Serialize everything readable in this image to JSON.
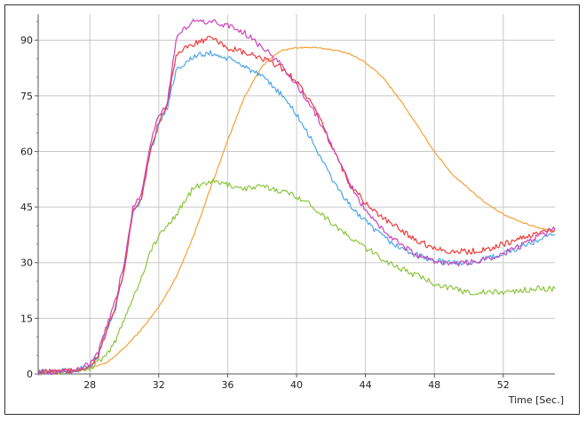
{
  "chart_data": {
    "type": "line",
    "title": "",
    "xlabel": "Time [Sec.]",
    "ylabel": "",
    "xlim": [
      25,
      55
    ],
    "ylim": [
      0,
      97
    ],
    "x_ticks": [
      28,
      32,
      36,
      40,
      44,
      48,
      52
    ],
    "y_ticks": [
      0,
      15,
      30,
      45,
      60,
      75,
      90
    ],
    "grid": true,
    "legend": "none",
    "series": [
      {
        "color": "#f7a035",
        "x": [
          25,
          27,
          28,
          29,
          30,
          31,
          32,
          33,
          34,
          35,
          36,
          37,
          38,
          39,
          40,
          41,
          42,
          43,
          44,
          45,
          46,
          47,
          48,
          49,
          50,
          51,
          52,
          53,
          54,
          55
        ],
        "y": [
          0.5,
          0.8,
          1.5,
          3,
          7,
          12,
          18,
          26,
          37,
          50,
          63,
          75,
          83,
          87,
          88,
          88,
          87.5,
          86.5,
          84,
          80,
          74,
          67,
          60,
          54,
          50,
          46,
          43,
          41,
          39.5,
          38.5
        ]
      },
      {
        "color": "#8cc63f",
        "x": [
          25,
          27,
          28,
          29,
          29.5,
          30,
          31,
          31.5,
          32,
          33,
          34,
          35,
          36,
          37,
          38,
          39,
          40,
          41,
          42,
          43,
          44,
          45,
          46,
          47,
          48,
          49,
          50,
          51,
          52,
          53,
          54,
          55
        ],
        "y": [
          0.5,
          0.8,
          1.5,
          5,
          9,
          15,
          26,
          33,
          37,
          43,
          50,
          52,
          51,
          50,
          50.5,
          49.5,
          48,
          45,
          41,
          37,
          34,
          31,
          28.5,
          26.5,
          24.5,
          23,
          22,
          22,
          22,
          22.5,
          23,
          23
        ]
      },
      {
        "color": "#4da6e8",
        "x": [
          25,
          27,
          28,
          28.5,
          29,
          29.5,
          30,
          30.5,
          31,
          31.5,
          32,
          32.5,
          33,
          34,
          35,
          36,
          37,
          38,
          39,
          40,
          41,
          42,
          43,
          44,
          45,
          46,
          47,
          48,
          49,
          50,
          51,
          52,
          53,
          54,
          55
        ],
        "y": [
          0.5,
          0.8,
          2,
          5,
          12,
          18,
          28,
          44,
          47,
          60,
          67,
          72,
          82,
          85.5,
          86.5,
          85,
          83,
          80,
          76,
          70,
          62,
          53,
          46,
          41,
          37,
          34,
          32,
          30.5,
          30,
          30,
          31,
          32.5,
          34,
          36,
          37.5
        ]
      },
      {
        "color": "#ee3b3b",
        "x": [
          25,
          27,
          28,
          28.5,
          29,
          29.5,
          30,
          30.5,
          31,
          31.5,
          32,
          32.5,
          33,
          34,
          35,
          36,
          37,
          38,
          39,
          40,
          41,
          42,
          43,
          44,
          45,
          46,
          47,
          48,
          49,
          50,
          51,
          52,
          53,
          54,
          55
        ],
        "y": [
          0.5,
          0.8,
          2,
          5,
          12,
          18,
          28,
          44,
          47,
          60,
          68,
          73,
          86,
          89,
          90.5,
          88,
          86.5,
          85,
          83,
          79,
          72,
          62,
          52,
          46,
          42,
          39,
          36,
          34,
          33,
          33,
          33.5,
          35,
          36.5,
          38,
          39
        ]
      },
      {
        "color": "#cc44bb",
        "x": [
          25,
          27,
          28,
          28.5,
          29,
          29.5,
          30,
          30.5,
          31,
          31.5,
          32,
          32.5,
          33,
          33.5,
          34,
          35,
          36,
          37,
          38,
          39,
          40,
          41,
          42,
          43,
          44,
          45,
          46,
          47,
          48,
          49,
          50,
          51,
          52,
          53,
          54,
          55
        ],
        "y": [
          0.5,
          0.8,
          2.5,
          6,
          13,
          20,
          30,
          45,
          49,
          62,
          70,
          73,
          90,
          93,
          95,
          95,
          94,
          92,
          88,
          84,
          78,
          71,
          62,
          52,
          44,
          39,
          35,
          32,
          30.5,
          29.5,
          30,
          31,
          32.5,
          34.5,
          37,
          39
        ]
      }
    ]
  }
}
